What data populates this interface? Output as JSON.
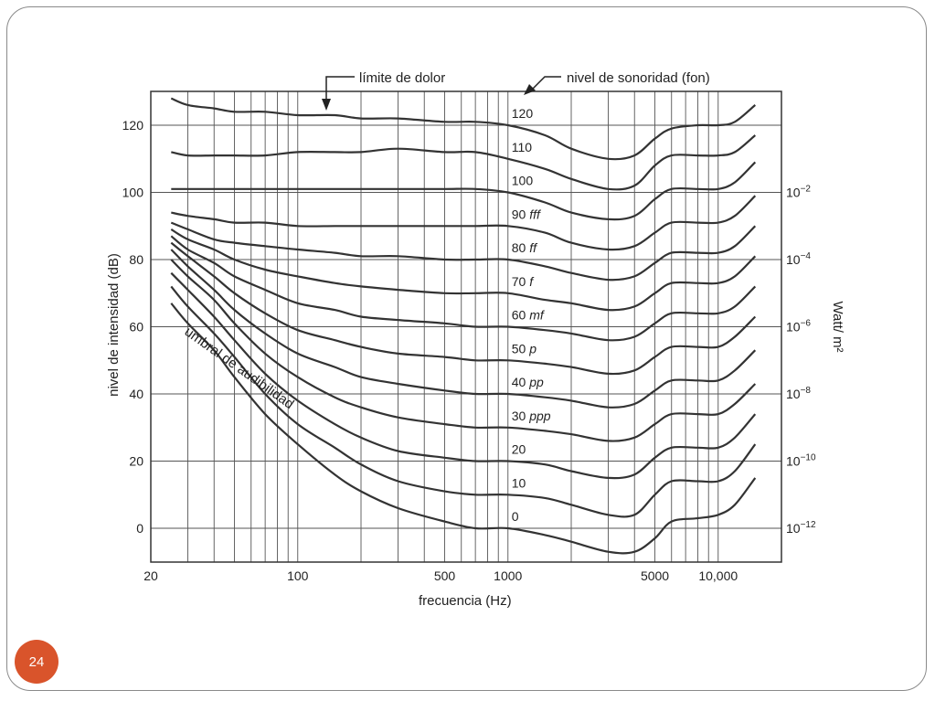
{
  "slide": {
    "page_number": "24"
  },
  "chart_data": {
    "type": "line",
    "title": "",
    "xlabel": "frecuencia (Hz)",
    "ylabel": "nivel de intensidad (dB)",
    "y2label": "Watt/ m²",
    "xscale": "log",
    "xlim": [
      20,
      20000
    ],
    "ylim": [
      -10,
      130
    ],
    "grid": true,
    "x_ticks": [
      "20",
      "100",
      "500",
      "1000",
      "5000",
      "10,000"
    ],
    "x_tick_values": [
      20,
      100,
      500,
      1000,
      5000,
      10000
    ],
    "y_ticks": [
      "0",
      "20",
      "40",
      "60",
      "80",
      "100",
      "120"
    ],
    "y_tick_values": [
      0,
      20,
      40,
      60,
      80,
      100,
      120
    ],
    "y2_ticks": [
      {
        "base": "10",
        "exp": "−2",
        "db": 100
      },
      {
        "base": "10",
        "exp": "−4",
        "db": 80
      },
      {
        "base": "10",
        "exp": "−6",
        "db": 60
      },
      {
        "base": "10",
        "exp": "−8",
        "db": 40
      },
      {
        "base": "10",
        "exp": "−10",
        "db": 20
      },
      {
        "base": "10",
        "exp": "−12",
        "db": 0
      }
    ],
    "annotations": {
      "pain_threshold": "límite de dolor",
      "loudness_level": "nivel de sonoridad  (fon)",
      "hearing_threshold": "umbral de audibilidad"
    },
    "x": [
      25,
      30,
      40,
      50,
      70,
      100,
      150,
      200,
      300,
      500,
      700,
      1000,
      1500,
      2000,
      3000,
      4000,
      5000,
      6000,
      8000,
      10000,
      12000,
      15000
    ],
    "series": [
      {
        "label_num": "120",
        "label_dyn": "",
        "values": [
          128,
          126,
          125,
          124,
          124,
          123,
          123,
          122,
          122,
          121,
          121,
          120,
          117,
          113,
          110,
          111,
          116,
          119,
          120,
          120,
          121,
          126
        ]
      },
      {
        "label_num": "110",
        "label_dyn": "",
        "values": [
          112,
          111,
          111,
          111,
          111,
          112,
          112,
          112,
          113,
          112,
          112,
          110,
          107,
          104,
          101,
          102,
          108,
          111,
          111,
          111,
          112,
          117
        ]
      },
      {
        "label_num": "100",
        "label_dyn": "",
        "values": [
          101,
          101,
          101,
          101,
          101,
          101,
          101,
          101,
          101,
          101,
          101,
          100,
          97,
          94,
          92,
          93,
          98,
          101,
          101,
          101,
          103,
          109
        ]
      },
      {
        "label_num": "90",
        "label_dyn": "fff",
        "values": [
          94,
          93,
          92,
          91,
          91,
          90,
          90,
          90,
          90,
          90,
          90,
          90,
          88,
          85,
          83,
          84,
          88,
          91,
          91,
          91,
          93,
          99
        ]
      },
      {
        "label_num": "80",
        "label_dyn": "ff",
        "values": [
          91,
          89,
          86,
          85,
          84,
          83,
          82,
          81,
          81,
          80,
          80,
          80,
          78,
          76,
          74,
          75,
          79,
          82,
          82,
          82,
          84,
          90
        ]
      },
      {
        "label_num": "70",
        "label_dyn": "f",
        "values": [
          89,
          86,
          83,
          80,
          77,
          75,
          73,
          72,
          71,
          70,
          70,
          70,
          68,
          67,
          65,
          66,
          70,
          73,
          73,
          73,
          75,
          81
        ]
      },
      {
        "label_num": "60",
        "label_dyn": "mf",
        "values": [
          87,
          83,
          79,
          75,
          71,
          67,
          65,
          63,
          62,
          61,
          60,
          60,
          59,
          58,
          56,
          57,
          61,
          64,
          64,
          64,
          66,
          72
        ]
      },
      {
        "label_num": "50",
        "label_dyn": "p",
        "values": [
          85,
          81,
          75,
          70,
          64,
          59,
          56,
          54,
          52,
          51,
          50,
          50,
          49,
          48,
          46,
          47,
          51,
          54,
          54,
          54,
          57,
          63
        ]
      },
      {
        "label_num": "40",
        "label_dyn": "pp",
        "values": [
          83,
          78,
          71,
          65,
          58,
          52,
          48,
          45,
          43,
          41,
          40,
          40,
          39,
          38,
          36,
          37,
          41,
          44,
          44,
          44,
          47,
          53
        ]
      },
      {
        "label_num": "30",
        "label_dyn": "ppp",
        "values": [
          80,
          75,
          68,
          61,
          52,
          45,
          39,
          36,
          33,
          31,
          30,
          30,
          29,
          28,
          26,
          27,
          31,
          34,
          34,
          34,
          37,
          43
        ]
      },
      {
        "label_num": "20",
        "label_dyn": "",
        "values": [
          76,
          71,
          63,
          56,
          46,
          38,
          31,
          27,
          23,
          21,
          20,
          20,
          19,
          17,
          15,
          16,
          21,
          24,
          24,
          24,
          27,
          34
        ]
      },
      {
        "label_num": "10",
        "label_dyn": "",
        "values": [
          72,
          66,
          58,
          51,
          40,
          31,
          24,
          19,
          14,
          11,
          10,
          10,
          9,
          7,
          4,
          4,
          10,
          14,
          14,
          14,
          17,
          25
        ]
      },
      {
        "label_num": "0",
        "label_dyn": "",
        "values": [
          67,
          61,
          53,
          45,
          34,
          25,
          16,
          11,
          6,
          2,
          0,
          0,
          -2,
          -4,
          -7,
          -7,
          -3,
          2,
          3,
          4,
          7,
          15
        ]
      }
    ],
    "legend": "none"
  }
}
